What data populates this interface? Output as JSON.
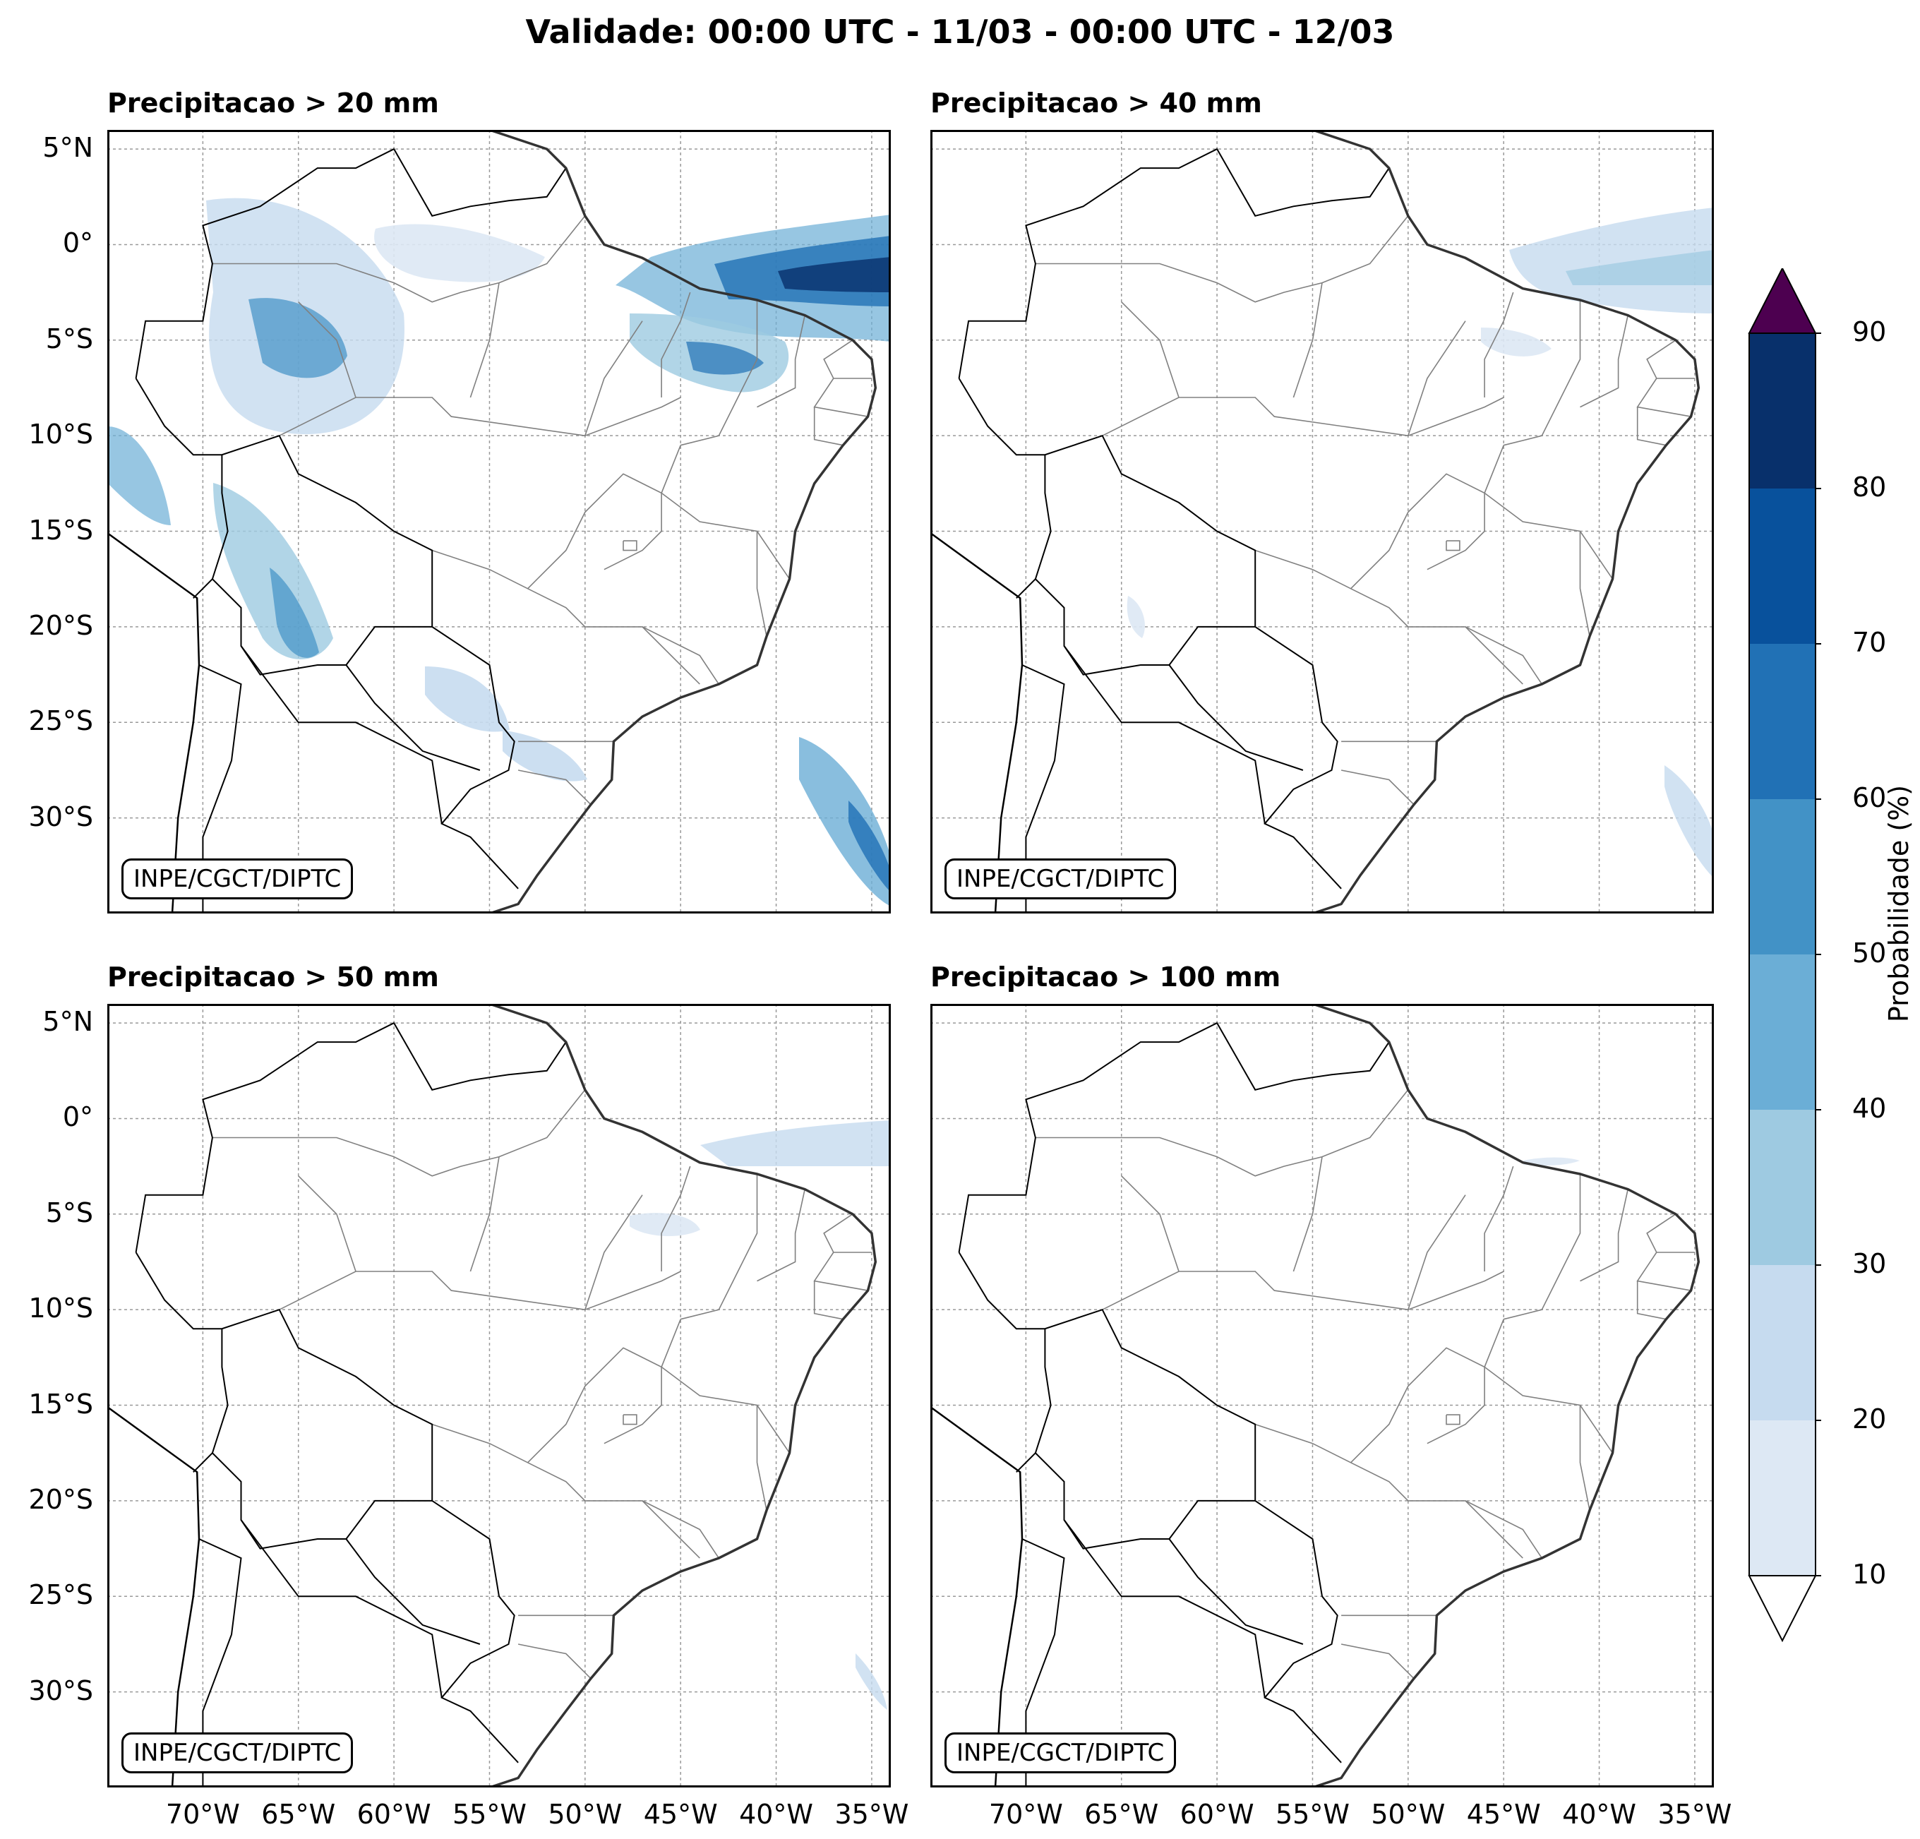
{
  "header": {
    "title": "Validade: 00:00 UTC - 11/03 - 00:00 UTC - 12/03"
  },
  "panels": [
    {
      "title": "Precipitacao > 20 mm",
      "credit": "INPE/CGCT/DIPTC"
    },
    {
      "title": "Precipitacao > 40 mm",
      "credit": "INPE/CGCT/DIPTC"
    },
    {
      "title": "Precipitacao > 50 mm",
      "credit": "INPE/CGCT/DIPTC"
    },
    {
      "title": "Precipitacao > 100 mm",
      "credit": "INPE/CGCT/DIPTC"
    }
  ],
  "axes": {
    "lat_labels": [
      "5°N",
      "0°",
      "5°S",
      "10°S",
      "15°S",
      "20°S",
      "25°S",
      "30°S"
    ],
    "lon_labels": [
      "70°W",
      "65°W",
      "60°W",
      "55°W",
      "50°W",
      "45°W",
      "40°W",
      "35°W"
    ],
    "lat_values": [
      5,
      0,
      -5,
      -10,
      -15,
      -20,
      -25,
      -30
    ],
    "lon_values": [
      -70,
      -65,
      -60,
      -55,
      -50,
      -45,
      -40,
      -35
    ],
    "lat_range": [
      -35,
      6
    ],
    "lon_range": [
      -75,
      -34
    ]
  },
  "colorbar": {
    "label": "Probabilidade (%)",
    "ticks": [
      "10",
      "20",
      "30",
      "40",
      "50",
      "60",
      "70",
      "80",
      "90"
    ],
    "colors": [
      "#dde8f4",
      "#c6dbef",
      "#9ecae1",
      "#6baed6",
      "#4292c6",
      "#2171b5",
      "#08519c",
      "#08306b"
    ],
    "under_color": "#ffffff",
    "over_color": "#4d0050"
  },
  "colors": {
    "frame": "#000000",
    "grid": "#999999",
    "state_border": "#808080"
  }
}
